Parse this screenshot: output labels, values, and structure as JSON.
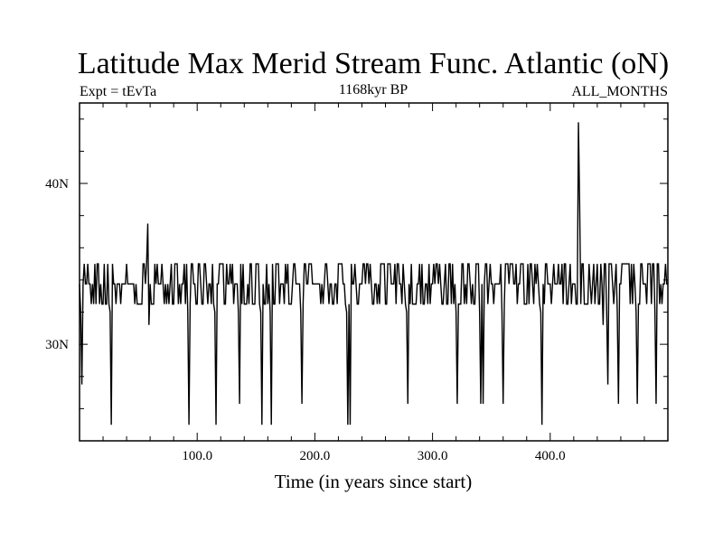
{
  "chart_data": {
    "type": "line",
    "title": "Latitude Max Merid Stream Func. Atlantic (oN)",
    "subtitle_left": "Expt = tEvTa",
    "subtitle_center": "1168kyr BP",
    "subtitle_right": "ALL_MONTHS",
    "xlabel": "Time (in years since start)",
    "ylabel": "",
    "xlim": [
      0,
      500
    ],
    "ylim": [
      24,
      45
    ],
    "xticks": [
      100,
      200,
      300,
      400
    ],
    "xtick_labels": [
      "100.0",
      "200.0",
      "300.0",
      "400.0"
    ],
    "yticks": [
      30,
      40
    ],
    "ytick_labels": [
      "30N",
      "40N"
    ],
    "baseline_levels": [
      32.5,
      33.75,
      35.0
    ],
    "spikes": [
      {
        "x": 2,
        "y": 27.5
      },
      {
        "x": 27,
        "y": 25.0
      },
      {
        "x": 58,
        "y": 37.5
      },
      {
        "x": 59,
        "y": 31.2
      },
      {
        "x": 93,
        "y": 25.0
      },
      {
        "x": 116,
        "y": 25.0
      },
      {
        "x": 136,
        "y": 26.3
      },
      {
        "x": 155,
        "y": 25.0
      },
      {
        "x": 163,
        "y": 25.0
      },
      {
        "x": 189,
        "y": 26.3
      },
      {
        "x": 228,
        "y": 25.0
      },
      {
        "x": 230,
        "y": 25.0
      },
      {
        "x": 279,
        "y": 26.3
      },
      {
        "x": 321,
        "y": 26.3
      },
      {
        "x": 341,
        "y": 26.3
      },
      {
        "x": 343,
        "y": 26.3
      },
      {
        "x": 360,
        "y": 26.3
      },
      {
        "x": 393,
        "y": 25.0
      },
      {
        "x": 424,
        "y": 43.8
      },
      {
        "x": 425,
        "y": 38.8
      },
      {
        "x": 445,
        "y": 31.2
      },
      {
        "x": 449,
        "y": 27.5
      },
      {
        "x": 458,
        "y": 26.3
      },
      {
        "x": 474,
        "y": 26.3
      },
      {
        "x": 490,
        "y": 26.3
      }
    ],
    "noise_seed": 20231168,
    "n_points": 500
  }
}
